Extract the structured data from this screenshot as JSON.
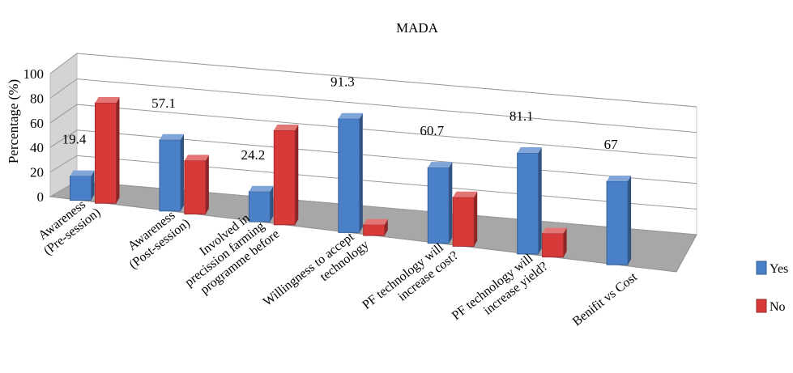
{
  "chart_data": {
    "type": "bar",
    "title": "MADA",
    "ylabel": "Percentage (%)",
    "xlabel": "",
    "ylim": [
      0,
      100
    ],
    "yticks": [
      0,
      20,
      40,
      60,
      80,
      100
    ],
    "grid": true,
    "legend_position": "right",
    "categories": [
      [
        "Awareness",
        "(Pre-session)"
      ],
      [
        "Awareness",
        "(Post-session)"
      ],
      [
        "Involved in",
        "precission farming",
        "programme before"
      ],
      [
        "Willingness to accept",
        "technology"
      ],
      [
        "PF technology will",
        "increase cost?"
      ],
      [
        "PF technology will",
        "increase yield?"
      ],
      [
        "Benifit vs Cost"
      ]
    ],
    "series": [
      {
        "name": "Yes",
        "color": "#4a80c8",
        "values": [
          19.4,
          57.1,
          24.2,
          91.3,
          60.7,
          81.1,
          67
        ],
        "labels": [
          "19.4",
          "57.1",
          "24.2",
          "91.3",
          "60.7",
          "81.1",
          "67"
        ]
      },
      {
        "name": "No",
        "color": "#d83a3a",
        "values": [
          80.6,
          42.9,
          75.8,
          8.7,
          39.3,
          18.9,
          0
        ]
      }
    ]
  }
}
